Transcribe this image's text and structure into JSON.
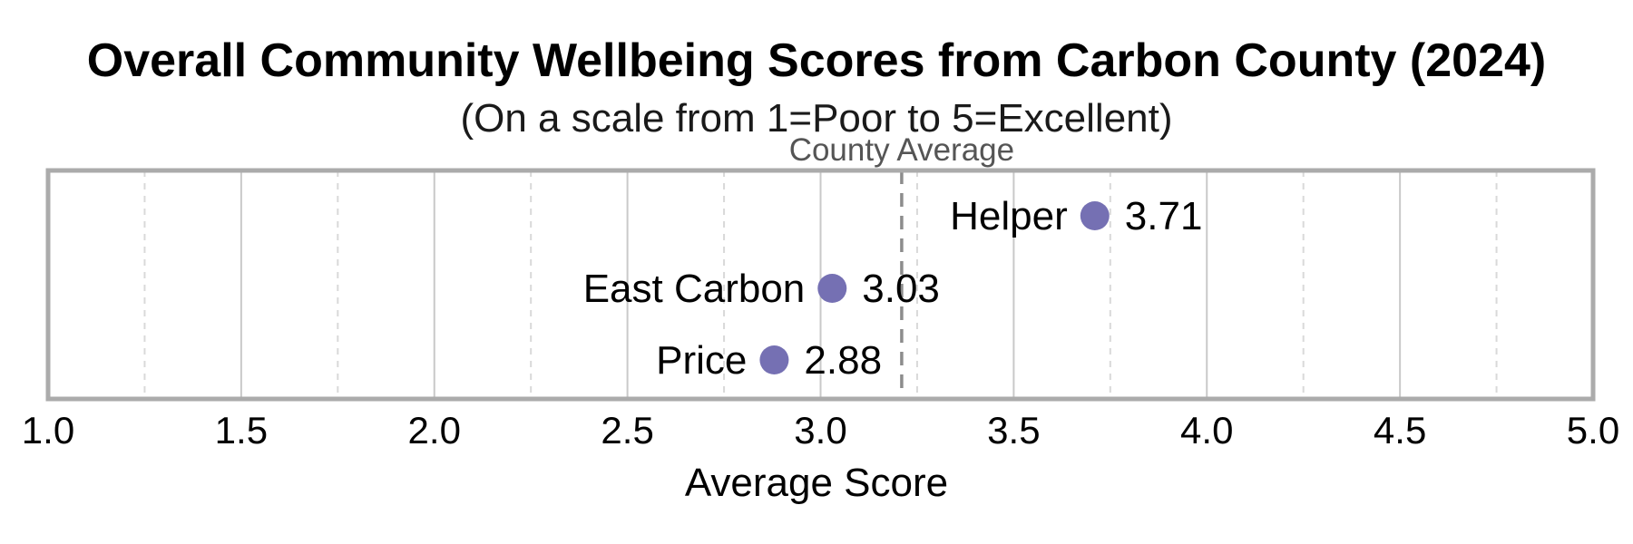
{
  "chart_data": {
    "type": "scatter",
    "title": "Overall Community Wellbeing Scores from Carbon County (2024)",
    "subtitle": "(On a scale from 1=Poor to 5=Excellent)",
    "xlabel": "Average Score",
    "xlim": [
      1.0,
      5.0
    ],
    "x_ticks": [
      "1.0",
      "1.5",
      "2.0",
      "2.5",
      "3.0",
      "3.5",
      "4.0",
      "4.5",
      "5.0"
    ],
    "x_major_step": 0.5,
    "x_minor_step": 0.25,
    "grid": true,
    "legend": "none",
    "points": [
      {
        "label": "Helper",
        "value": 3.71,
        "value_display": "3.71"
      },
      {
        "label": "East Carbon",
        "value": 3.03,
        "value_display": "3.03"
      },
      {
        "label": "Price",
        "value": 2.88,
        "value_display": "2.88"
      }
    ],
    "reference_line": {
      "label": "County Average",
      "value": 3.21
    },
    "colors": {
      "dot": "#7570b3",
      "plot_border": "#ababab",
      "major_grid": "#c9c9c9",
      "minor_grid": "#d9d9d9",
      "reference_line": "#8c8c8c",
      "reference_label": "#555555",
      "title_text": "#000000",
      "subtitle_text": "#1a1a1a",
      "label_text": "#000000"
    }
  }
}
